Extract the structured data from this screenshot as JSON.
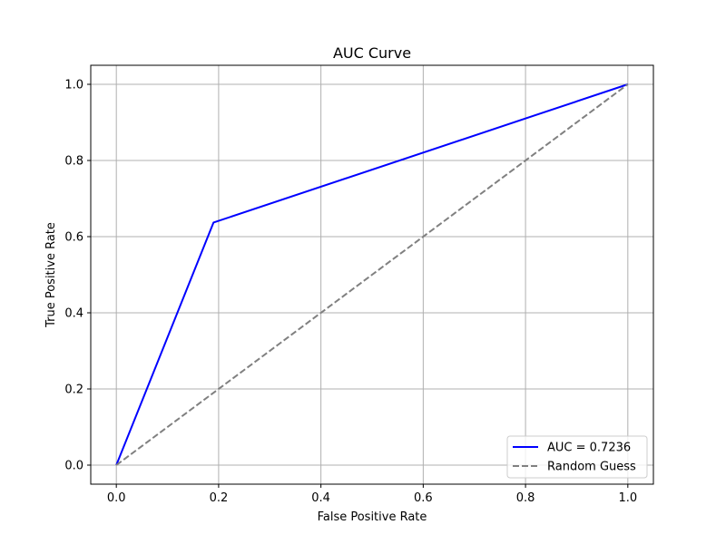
{
  "chart_data": {
    "type": "line",
    "title": "AUC Curve",
    "xlabel": "False Positive Rate",
    "ylabel": "True Positive Rate",
    "xlim": [
      -0.05,
      1.05
    ],
    "ylim": [
      -0.05,
      1.05
    ],
    "xticks": [
      "0.0",
      "0.2",
      "0.4",
      "0.6",
      "0.8",
      "1.0"
    ],
    "yticks": [
      "0.0",
      "0.2",
      "0.4",
      "0.6",
      "0.8",
      "1.0"
    ],
    "grid": true,
    "legend_position": "lower-right",
    "series": [
      {
        "name": "AUC = 0.7236",
        "color": "#0000ff",
        "style": "solid",
        "x": [
          0.0,
          0.19,
          1.0
        ],
        "y": [
          0.0,
          0.637,
          1.0
        ]
      },
      {
        "name": "Random Guess",
        "color": "#808080",
        "style": "dashed",
        "x": [
          0.0,
          1.0
        ],
        "y": [
          0.0,
          1.0
        ]
      }
    ]
  }
}
